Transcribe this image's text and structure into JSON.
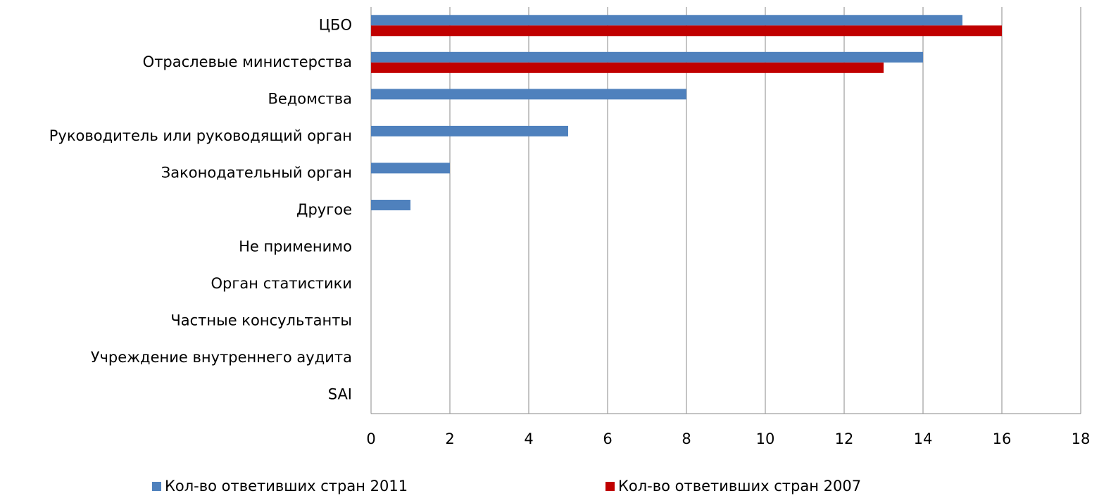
{
  "chart_data": {
    "type": "barh",
    "categories": [
      "ЦБО",
      "Отраслевые министерства",
      "Ведомства",
      "Руководитель или руководящий орган",
      "Законодательный орган",
      "Другое",
      "Не применимо",
      "Орган статистики",
      "Частные консультанты",
      "Учреждение внутреннего аудита",
      "SAI"
    ],
    "series": [
      {
        "name": "Кол-во ответивших стран 2011",
        "color": "#4f81bd",
        "values": [
          15,
          14,
          8,
          5,
          2,
          1,
          0,
          0,
          0,
          0,
          0
        ]
      },
      {
        "name": "Кол-во ответивших стран 2007",
        "color": "#c00000",
        "values": [
          16,
          13,
          0,
          0,
          0,
          0,
          0,
          0,
          0,
          0,
          0
        ]
      }
    ],
    "xlim": [
      0,
      18
    ],
    "xticks": [
      0,
      2,
      4,
      6,
      8,
      10,
      12,
      14,
      16,
      18
    ],
    "grid": true,
    "legend": "bottom"
  }
}
